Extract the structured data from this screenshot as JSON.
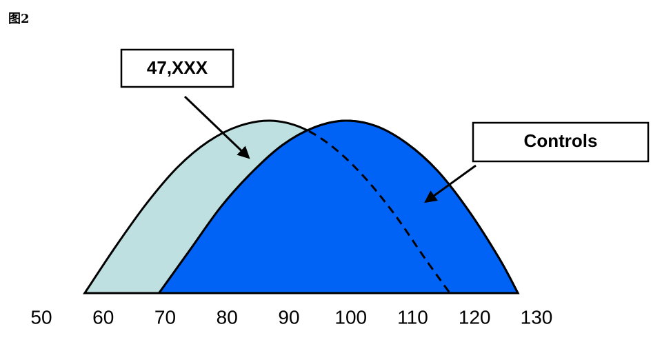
{
  "chart_data": {
    "type": "area",
    "title": "图2",
    "xlim": [
      50,
      130
    ],
    "xticks": [
      50,
      60,
      70,
      80,
      90,
      100,
      110,
      120,
      130
    ],
    "ylim": [
      0,
      1
    ],
    "series": [
      {
        "name": "47,XXX",
        "color": "#bfe0e0",
        "x": [
          57,
          62,
          67,
          72,
          77,
          82,
          87,
          92,
          97,
          102,
          107,
          112,
          116
        ],
        "values": [
          0,
          0.27,
          0.52,
          0.73,
          0.88,
          0.97,
          1,
          0.96,
          0.85,
          0.68,
          0.46,
          0.2,
          0
        ]
      },
      {
        "name": "Controls",
        "color": "#0063f5",
        "x": [
          69,
          74,
          79,
          84,
          89,
          94,
          99,
          104,
          109,
          114,
          119,
          124,
          127
        ],
        "values": [
          0,
          0.25,
          0.5,
          0.7,
          0.86,
          0.96,
          1,
          0.97,
          0.87,
          0.71,
          0.48,
          0.2,
          0
        ]
      }
    ]
  }
}
